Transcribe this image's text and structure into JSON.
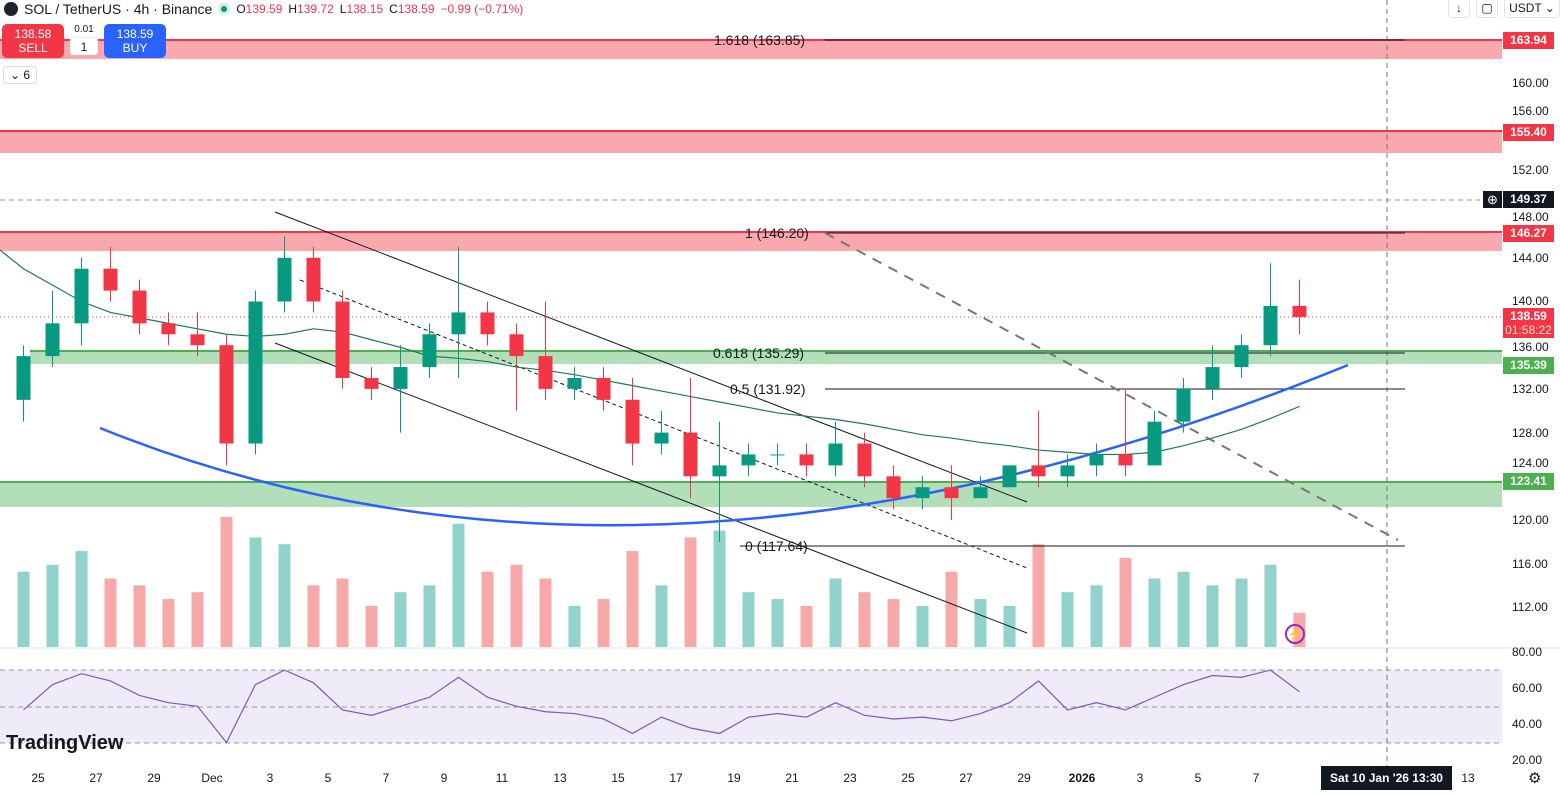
{
  "header": {
    "symbol": "SOL / TetherUS · 4h · Binance",
    "open_label": "O",
    "open": "139.59",
    "high_label": "H",
    "high": "139.72",
    "low_label": "L",
    "low": "138.15",
    "close_label": "C",
    "close": "138.59",
    "change": "−0.99 (−0.71%)"
  },
  "trade": {
    "sell_price": "138.58",
    "sell_label": "SELL",
    "buy_price": "138.59",
    "buy_label": "BUY",
    "spread": "0.01",
    "quantity": "1"
  },
  "collapse": {
    "count": "6"
  },
  "toolbar": {
    "currency": "USDT"
  },
  "colors": {
    "up": "#089981",
    "down": "#f23645",
    "resistance": "#f23645",
    "support": "#4caf50",
    "curve": "#2962ff",
    "ma": "#1b7a5a",
    "rsi": "#7e57c2"
  },
  "price_axis": {
    "ticks": [
      "160.00",
      "156.00",
      "152.00",
      "148.00",
      "144.00",
      "140.00",
      "136.00",
      "132.00",
      "128.00",
      "124.00",
      "120.00",
      "116.00",
      "112.00"
    ],
    "labels": {
      "r1": "163.94",
      "r2": "155.40",
      "alert": "149.37",
      "r3": "146.27",
      "current": "138.59",
      "countdown": "01:58:22",
      "s1": "135.39",
      "s2": "123.41"
    }
  },
  "rsi_axis": {
    "ticks": [
      "80.00",
      "60.00",
      "40.00",
      "20.00"
    ]
  },
  "fib": {
    "l1618": "1.618 (163.85)",
    "l1": "1 (146.20)",
    "l618": "0.618 (135.29)",
    "l5": "0.5 (131.92)",
    "l0": "0 (117.64)"
  },
  "time_axis": {
    "ticks": [
      "25",
      "27",
      "29",
      "Dec",
      "3",
      "5",
      "7",
      "9",
      "11",
      "13",
      "15",
      "17",
      "19",
      "21",
      "23",
      "25",
      "27",
      "29",
      "2026",
      "3",
      "5",
      "7",
      "13"
    ],
    "crosshair": "Sat 10 Jan '26   13:30"
  },
  "branding": "TradingView",
  "chart_data": {
    "type": "candlestick",
    "interval": "4h",
    "ylim": [
      108,
      166
    ],
    "dates": [
      "Nov 24",
      "Nov 25",
      "Nov 26",
      "Nov 27",
      "Nov 28",
      "Nov 29",
      "Nov 30",
      "Dec 1",
      "Dec 2",
      "Dec 3",
      "Dec 4",
      "Dec 5",
      "Dec 6",
      "Dec 7",
      "Dec 8",
      "Dec 9",
      "Dec 10",
      "Dec 11",
      "Dec 12",
      "Dec 13",
      "Dec 14",
      "Dec 15",
      "Dec 16",
      "Dec 17",
      "Dec 18",
      "Dec 19",
      "Dec 20",
      "Dec 21",
      "Dec 22",
      "Dec 23",
      "Dec 24",
      "Dec 25",
      "Dec 26",
      "Dec 27",
      "Dec 28",
      "Dec 29",
      "Dec 30",
      "Dec 31",
      "Jan 1",
      "Jan 2",
      "Jan 3",
      "Jan 4",
      "Jan 5",
      "Jan 6",
      "Jan 7"
    ],
    "ohlc": [
      [
        131,
        136,
        129,
        135
      ],
      [
        135,
        141,
        134,
        138
      ],
      [
        138,
        144,
        136,
        143
      ],
      [
        143,
        145,
        140,
        141
      ],
      [
        141,
        142,
        137,
        138
      ],
      [
        138,
        139,
        136,
        137
      ],
      [
        137,
        139,
        135,
        136
      ],
      [
        136,
        137,
        125,
        127
      ],
      [
        127,
        141,
        126,
        140
      ],
      [
        140,
        146,
        139,
        144
      ],
      [
        144,
        145,
        139,
        140
      ],
      [
        140,
        141,
        132,
        133
      ],
      [
        133,
        134,
        131,
        132
      ],
      [
        132,
        136,
        128,
        134
      ],
      [
        134,
        138,
        133,
        137
      ],
      [
        137,
        145,
        133,
        139
      ],
      [
        139,
        140,
        136,
        137
      ],
      [
        137,
        138,
        130,
        135
      ],
      [
        135,
        140,
        131,
        132
      ],
      [
        132,
        134,
        131,
        133
      ],
      [
        133,
        134,
        130,
        131
      ],
      [
        131,
        133,
        125,
        127
      ],
      [
        127,
        130,
        126,
        128
      ],
      [
        128,
        133,
        122,
        124
      ],
      [
        124,
        129,
        118,
        125
      ],
      [
        125,
        127,
        124,
        126
      ],
      [
        126,
        127,
        125,
        126
      ],
      [
        126,
        127,
        124,
        125
      ],
      [
        125,
        129,
        124,
        127
      ],
      [
        127,
        128,
        123,
        124
      ],
      [
        124,
        125,
        121,
        122
      ],
      [
        122,
        124,
        121,
        123
      ],
      [
        123,
        125,
        120,
        122
      ],
      [
        122,
        124,
        122,
        123
      ],
      [
        123,
        125,
        123,
        125
      ],
      [
        125,
        130,
        123,
        124
      ],
      [
        124,
        126,
        123,
        125
      ],
      [
        125,
        127,
        124,
        126
      ],
      [
        126,
        132,
        124,
        125
      ],
      [
        125,
        130,
        125,
        129
      ],
      [
        129,
        133,
        128,
        132
      ],
      [
        132,
        136,
        131,
        134
      ],
      [
        134,
        137,
        133,
        136
      ],
      [
        136,
        143.5,
        135,
        139.6
      ],
      [
        139.6,
        142,
        137,
        138.59
      ]
    ],
    "volume_relative": [
      55,
      60,
      70,
      50,
      45,
      35,
      40,
      95,
      80,
      75,
      45,
      50,
      30,
      40,
      45,
      90,
      55,
      60,
      50,
      30,
      35,
      70,
      45,
      80,
      85,
      40,
      35,
      30,
      50,
      40,
      35,
      30,
      55,
      35,
      30,
      75,
      40,
      45,
      65,
      50,
      55,
      45,
      50,
      60,
      25
    ],
    "ma": [
      143,
      141.5,
      140,
      139,
      138.5,
      138,
      137.5,
      137,
      136.8,
      137,
      137.5,
      137.2,
      136.5,
      135.8,
      135,
      134.8,
      134.5,
      134,
      133.7,
      133.3,
      132.8,
      132.3,
      131.8,
      131.3,
      130.8,
      130.3,
      129.8,
      129.5,
      129.2,
      128.8,
      128.3,
      127.8,
      127.5,
      127.1,
      126.8,
      126.4,
      126.2,
      126,
      126,
      126.2,
      126.8,
      127.5,
      128.3,
      129.3,
      130.4
    ],
    "rsi": [
      48,
      62,
      68,
      64,
      56,
      52,
      50,
      30,
      62,
      70,
      63,
      48,
      45,
      50,
      55,
      66,
      55,
      50,
      47,
      46,
      43,
      35,
      44,
      38,
      35,
      44,
      46,
      44,
      52,
      45,
      43,
      44,
      42,
      46,
      52,
      64,
      48,
      52,
      48,
      55,
      62,
      67,
      66,
      70,
      58
    ],
    "rsi_bands": [
      30,
      50,
      70
    ]
  }
}
